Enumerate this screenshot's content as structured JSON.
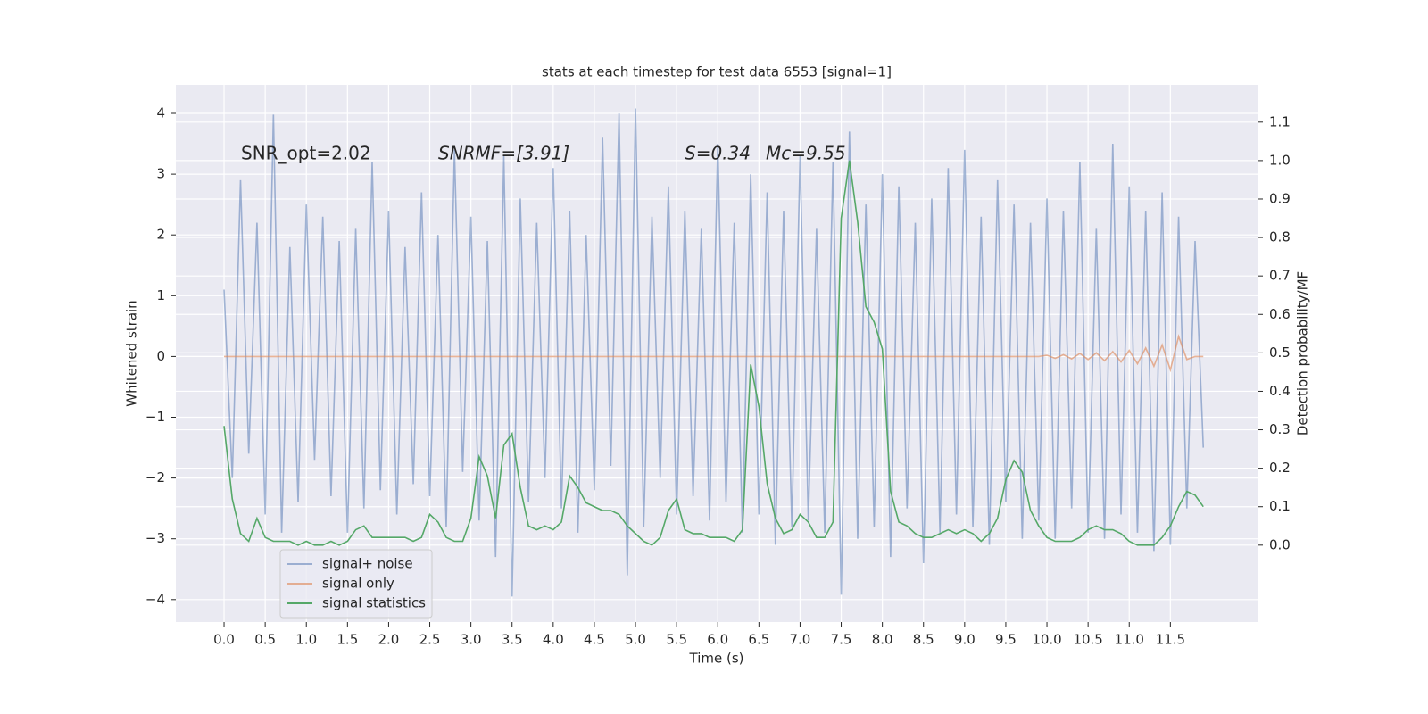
{
  "chart_data": {
    "type": "line",
    "title": "stats at each timestep for test data 6553 [signal=1]",
    "x_label": "Time (s)",
    "y_label": "Whitened strain",
    "y2_label": "Detection probability/MF",
    "annotations": [
      "SNR_opt=2.02",
      "SNRMF=[3.91]",
      "S=0.34",
      "Mc=9.55"
    ],
    "x": [
      0.0,
      0.1,
      0.2,
      0.3,
      0.4,
      0.5,
      0.6,
      0.7,
      0.8,
      0.9,
      1.0,
      1.1,
      1.2,
      1.3,
      1.4,
      1.5,
      1.6,
      1.7,
      1.8,
      1.9,
      2.0,
      2.1,
      2.2,
      2.3,
      2.4,
      2.5,
      2.6,
      2.7,
      2.8,
      2.9,
      3.0,
      3.1,
      3.2,
      3.3,
      3.4,
      3.5,
      3.6,
      3.7,
      3.8,
      3.9,
      4.0,
      4.1,
      4.2,
      4.3,
      4.4,
      4.5,
      4.6,
      4.7,
      4.8,
      4.9,
      5.0,
      5.1,
      5.2,
      5.3,
      5.4,
      5.5,
      5.6,
      5.7,
      5.8,
      5.9,
      6.0,
      6.1,
      6.2,
      6.3,
      6.4,
      6.5,
      6.6,
      6.7,
      6.8,
      6.9,
      7.0,
      7.1,
      7.2,
      7.3,
      7.4,
      7.5,
      7.6,
      7.7,
      7.8,
      7.9,
      8.0,
      8.1,
      8.2,
      8.3,
      8.4,
      8.5,
      8.6,
      8.7,
      8.8,
      8.9,
      9.0,
      9.1,
      9.2,
      9.3,
      9.4,
      9.5,
      9.6,
      9.7,
      9.8,
      9.9,
      10.0,
      10.1,
      10.2,
      10.3,
      10.4,
      10.5,
      10.6,
      10.7,
      10.8,
      10.9,
      11.0,
      11.1,
      11.2,
      11.3,
      11.4,
      11.5,
      11.6,
      11.7,
      11.8,
      11.9
    ],
    "series": [
      {
        "name": "signal+ noise",
        "color": "#4c72b0",
        "opacity": 0.5,
        "values": [
          1.1,
          -2.0,
          2.9,
          -1.6,
          2.2,
          -2.6,
          3.98,
          -2.9,
          1.8,
          -2.4,
          2.5,
          -1.7,
          2.3,
          -2.3,
          1.9,
          -2.9,
          2.1,
          -2.5,
          3.2,
          -2.2,
          2.4,
          -2.6,
          1.8,
          -2.1,
          2.7,
          -2.3,
          2.0,
          -2.8,
          3.4,
          -1.9,
          2.3,
          -2.7,
          1.9,
          -3.3,
          3.3,
          -3.95,
          2.6,
          -2.4,
          2.2,
          -2.0,
          3.1,
          -2.5,
          2.4,
          -2.9,
          2.0,
          -2.2,
          3.6,
          -1.8,
          4.0,
          -3.6,
          4.08,
          -2.8,
          2.3,
          -2.0,
          2.8,
          -2.6,
          2.4,
          -2.3,
          2.1,
          -2.7,
          3.5,
          -2.4,
          2.2,
          -2.9,
          3.0,
          -2.6,
          2.7,
          -3.1,
          2.4,
          -2.8,
          3.3,
          -2.7,
          2.1,
          -2.9,
          3.2,
          -3.92,
          3.7,
          -3.0,
          2.5,
          -2.8,
          3.0,
          -3.3,
          2.8,
          -2.5,
          2.2,
          -3.4,
          2.6,
          -2.9,
          3.1,
          -2.6,
          3.4,
          -2.8,
          2.3,
          -3.1,
          2.9,
          -2.4,
          2.5,
          -3.0,
          2.2,
          -2.7,
          2.6,
          -3.0,
          2.4,
          -2.5,
          3.2,
          -2.9,
          2.1,
          -3.0,
          3.5,
          -2.6,
          2.8,
          -2.9,
          2.4,
          -3.2,
          2.7,
          -3.1,
          2.3,
          -2.5,
          1.9,
          -1.5
        ]
      },
      {
        "name": "signal only",
        "color": "#dd8452",
        "opacity": 0.6,
        "values": [
          0,
          0,
          0,
          0,
          0,
          0,
          0,
          0,
          0,
          0,
          0,
          0,
          0,
          0,
          0,
          0,
          0,
          0,
          0,
          0,
          0,
          0,
          0,
          0,
          0,
          0,
          0,
          0,
          0,
          0,
          0,
          0,
          0,
          0,
          0,
          0,
          0,
          0,
          0,
          0,
          0,
          0,
          0,
          0,
          0,
          0,
          0,
          0,
          0,
          0,
          0,
          0,
          0,
          0,
          0,
          0,
          0,
          0,
          0,
          0,
          0,
          0,
          0,
          0,
          0,
          0,
          0,
          0,
          0,
          0,
          0,
          0,
          0,
          0,
          0,
          0,
          0,
          0,
          0,
          0,
          0,
          0,
          0,
          0,
          0,
          0,
          0,
          0,
          0,
          0,
          0,
          0,
          0,
          0,
          0,
          0,
          0,
          0,
          0,
          0,
          0.02,
          -0.03,
          0.03,
          -0.04,
          0.05,
          -0.05,
          0.06,
          -0.07,
          0.08,
          -0.09,
          0.1,
          -0.12,
          0.14,
          -0.16,
          0.19,
          -0.22,
          0.33,
          -0.05,
          0,
          0
        ]
      },
      {
        "name": "signal statistics",
        "color": "#55a868",
        "opacity": 1,
        "axis": "y2",
        "values": [
          0.31,
          0.12,
          0.03,
          0.01,
          0.07,
          0.02,
          0.01,
          0.01,
          0.01,
          0.0,
          0.01,
          0.0,
          0.0,
          0.01,
          0.0,
          0.01,
          0.04,
          0.05,
          0.02,
          0.02,
          0.02,
          0.02,
          0.02,
          0.01,
          0.02,
          0.08,
          0.06,
          0.02,
          0.01,
          0.01,
          0.07,
          0.23,
          0.18,
          0.07,
          0.26,
          0.29,
          0.15,
          0.05,
          0.04,
          0.05,
          0.04,
          0.06,
          0.18,
          0.15,
          0.11,
          0.1,
          0.09,
          0.09,
          0.08,
          0.05,
          0.03,
          0.01,
          0.0,
          0.02,
          0.09,
          0.12,
          0.04,
          0.03,
          0.03,
          0.02,
          0.02,
          0.02,
          0.01,
          0.04,
          0.47,
          0.36,
          0.16,
          0.07,
          0.03,
          0.04,
          0.08,
          0.06,
          0.02,
          0.02,
          0.06,
          0.85,
          1.0,
          0.84,
          0.62,
          0.58,
          0.51,
          0.14,
          0.06,
          0.05,
          0.03,
          0.02,
          0.02,
          0.03,
          0.04,
          0.03,
          0.04,
          0.03,
          0.01,
          0.03,
          0.07,
          0.17,
          0.22,
          0.19,
          0.09,
          0.05,
          0.02,
          0.01,
          0.01,
          0.01,
          0.02,
          0.04,
          0.05,
          0.04,
          0.04,
          0.03,
          0.01,
          0.0,
          0.0,
          0.0,
          0.02,
          0.05,
          0.1,
          0.14,
          0.13,
          0.1
        ]
      }
    ],
    "xlim": [
      -0.586,
      12.57
    ],
    "ylim": [
      -4.37,
      4.47
    ],
    "y2lim": [
      -0.2,
      1.197
    ],
    "xticks": [
      {
        "value": 0,
        "label": "0.0"
      },
      0.5,
      {
        "value": 1,
        "label": "1.0"
      },
      1.5,
      {
        "value": 2,
        "label": "2.0"
      },
      2.5,
      {
        "value": 3,
        "label": "3.0"
      },
      3.5,
      {
        "value": 4,
        "label": "4.0"
      },
      4.5,
      {
        "value": 5,
        "label": "5.0"
      },
      5.5,
      {
        "value": 6,
        "label": "6.0"
      },
      6.5,
      {
        "value": 7,
        "label": "7.0"
      },
      7.5,
      {
        "value": 8,
        "label": "8.0"
      },
      8.5,
      {
        "value": 9,
        "label": "9.0"
      },
      9.5,
      {
        "value": 10,
        "label": "10.0"
      },
      10.5,
      {
        "value": 11,
        "label": "11.0"
      },
      11.5
    ],
    "yticks": [
      {
        "value": -4,
        "label": "−4"
      },
      {
        "value": -3,
        "label": "−3"
      },
      {
        "value": -2,
        "label": "−2"
      },
      {
        "value": -1,
        "label": "−1"
      },
      0,
      1,
      2,
      3,
      4
    ],
    "y2ticks": [
      {
        "value": 0,
        "label": "0.0"
      },
      0.1,
      0.2,
      0.3,
      0.4,
      0.5,
      0.6,
      0.7,
      0.8,
      0.9,
      {
        "value": 1,
        "label": "1.0"
      },
      1.1
    ],
    "grid": true,
    "legend": "lower left"
  }
}
